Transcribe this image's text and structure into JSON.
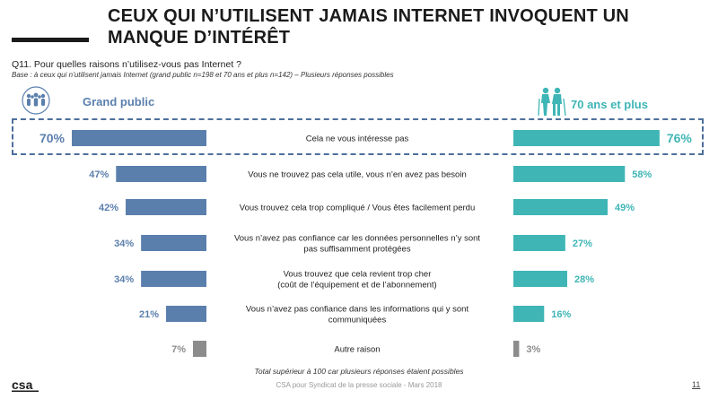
{
  "title": "CEUX QUI N’UTILISENT JAMAIS INTERNET INVOQUENT UN MANQUE D’INTÉRÊT",
  "question": "Q11. Pour quelles raisons n’utilisez-vous pas Internet ?",
  "base": "Base : à ceux qui n’utilisent jamais Internet (grand public n=198 et 70 ans et plus n=142) – Plusieurs réponses possibles",
  "logo_text": "csa",
  "footnote": "Total supérieur à 100 car plusieurs réponses étaient possibles",
  "source": "CSA pour Syndicat de la presse sociale - Mars 2018",
  "page_number": "11",
  "colors": {
    "grand_public": "#5b7fad",
    "seniors": "#3fb5b6",
    "other": "#8c8c8c",
    "highlight_border": "#4d6f9c"
  },
  "icons": {
    "grand_public": "crowd-icon",
    "seniors": "elderly-couple-icon"
  },
  "chart_data": {
    "type": "bar",
    "orientation": "horizontal-butterfly",
    "categories": [
      "Cela ne vous intéresse pas",
      "Vous ne trouvez pas cela utile, vous n’en avez pas besoin",
      "Vous trouvez cela trop compliqué / Vous êtes facilement perdu",
      "Vous n’avez pas confiance car les données personnelles n’y sont pas suffisamment protégées",
      "Vous trouvez que cela revient trop cher (coût de l’équipement et de l’abonnement)",
      "Vous n’avez pas confiance dans les informations qui y sont communiquées",
      "Autre raison"
    ],
    "category_lines": [
      [
        "Cela ne vous intéresse pas"
      ],
      [
        "Vous ne trouvez pas cela utile, vous n’en avez pas besoin"
      ],
      [
        "Vous trouvez cela trop compliqué / Vous êtes facilement perdu"
      ],
      [
        "Vous n’avez pas confiance car les données personnelles n’y sont",
        "pas suffisamment protégées"
      ],
      [
        "Vous trouvez que cela revient trop cher",
        "(coût de l’équipement et de l’abonnement)"
      ],
      [
        "Vous n’avez pas confiance dans les informations qui y sont",
        "communiquées"
      ],
      [
        "Autre raison"
      ]
    ],
    "series": [
      {
        "name": "Grand public",
        "side": "left",
        "values": [
          70,
          47,
          42,
          34,
          34,
          21,
          7
        ]
      },
      {
        "name": "70 ans et plus",
        "side": "right",
        "values": [
          76,
          58,
          49,
          27,
          28,
          16,
          3
        ]
      }
    ],
    "unit": "%",
    "highlighted_category": "Cela ne vous intéresse pas",
    "xlim": [
      0,
      80
    ]
  }
}
